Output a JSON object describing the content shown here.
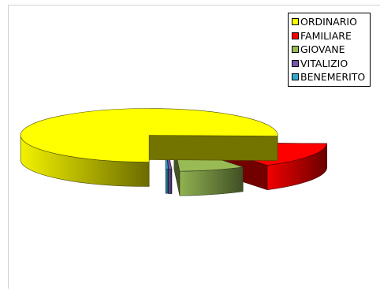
{
  "chart_data": {
    "type": "pie",
    "style": "3d-exploded",
    "categories": [
      "ORDINARIO",
      "FAMILIARE",
      "GIOVANE",
      "VITALIZIO",
      "BENEMERITO"
    ],
    "values": [
      75.5,
      15.5,
      8.3,
      0.4,
      0.3
    ],
    "colors": [
      "#ffff00",
      "#ff0000",
      "#99bb55",
      "#7755aa",
      "#33aacc"
    ],
    "legend_position": "top-right"
  }
}
